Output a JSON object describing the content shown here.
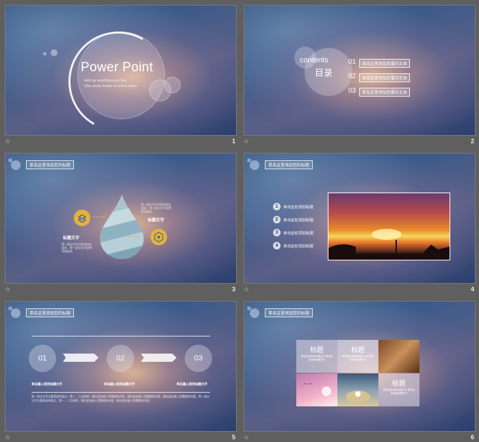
{
  "slides": [
    {
      "number": "1",
      "title": "Power Point",
      "subtitle_line1": "Add up anything your like",
      "subtitle_line2": "Like some books or some place"
    },
    {
      "number": "2",
      "contents_en": "contents",
      "contents_cn": "目录",
      "toc": [
        {
          "n": "01",
          "label": "单击这里添加您要的文本"
        },
        {
          "n": "02",
          "label": "单击这里添加您要的文本"
        },
        {
          "n": "03",
          "label": "单击这里添加您要的文本"
        }
      ]
    },
    {
      "number": "3",
      "title_tag": "单击这里添加您的标题",
      "left_label": "标题文字",
      "right_label": "标题文字",
      "left_text": "第一部分文字内容添加在此处，第一部分文字说明添加此处",
      "right_text": "第一部分文字内容添加在此处，第一部分文字说明添加此处"
    },
    {
      "number": "4",
      "title_tag": "单击这里添加您的标题",
      "items": [
        {
          "n": "1",
          "text": "单击此处添加标题"
        },
        {
          "n": "2",
          "text": "单击此处添加标题"
        },
        {
          "n": "3",
          "text": "单击此处添加标题"
        },
        {
          "n": "4",
          "text": "单击此处添加标题"
        }
      ]
    },
    {
      "number": "5",
      "title_tag": "单击这里添加您的标题",
      "steps": [
        {
          "n": "01",
          "label": "单击输入您的标题文字"
        },
        {
          "n": "02",
          "label": "单击输入您的标题文字"
        },
        {
          "n": "03",
          "label": "单击输入您的标题文字"
        }
      ],
      "paragraph": "第一部分文字主要表述的观点，第一、二点说明，请在此处输入您需要的内容，请在此处输入您需要的内容，请在此处输入您需要的内容。第一部分文字主要表述的观点，第一、二点说明，请在此处输入您需要的内容，请在此处输入您需要的内容。"
    },
    {
      "number": "6",
      "title_tag": "单击这里添加您的标题",
      "cells": [
        {
          "heading": "标题",
          "text": "单击此处添加标题文字 单击此处添加标题文字"
        },
        {
          "heading": "标题",
          "text": "单击此处添加标题文字 单击此处添加标题文字"
        },
        {
          "heading": "标题",
          "text": "单击此处添加标题文字 单击此处添加标题文字"
        }
      ]
    }
  ],
  "colors": {
    "accent_yellow": "#e8b23a",
    "background": "#5f5f5f"
  },
  "icons": {
    "slide_transition": "star-icon"
  }
}
